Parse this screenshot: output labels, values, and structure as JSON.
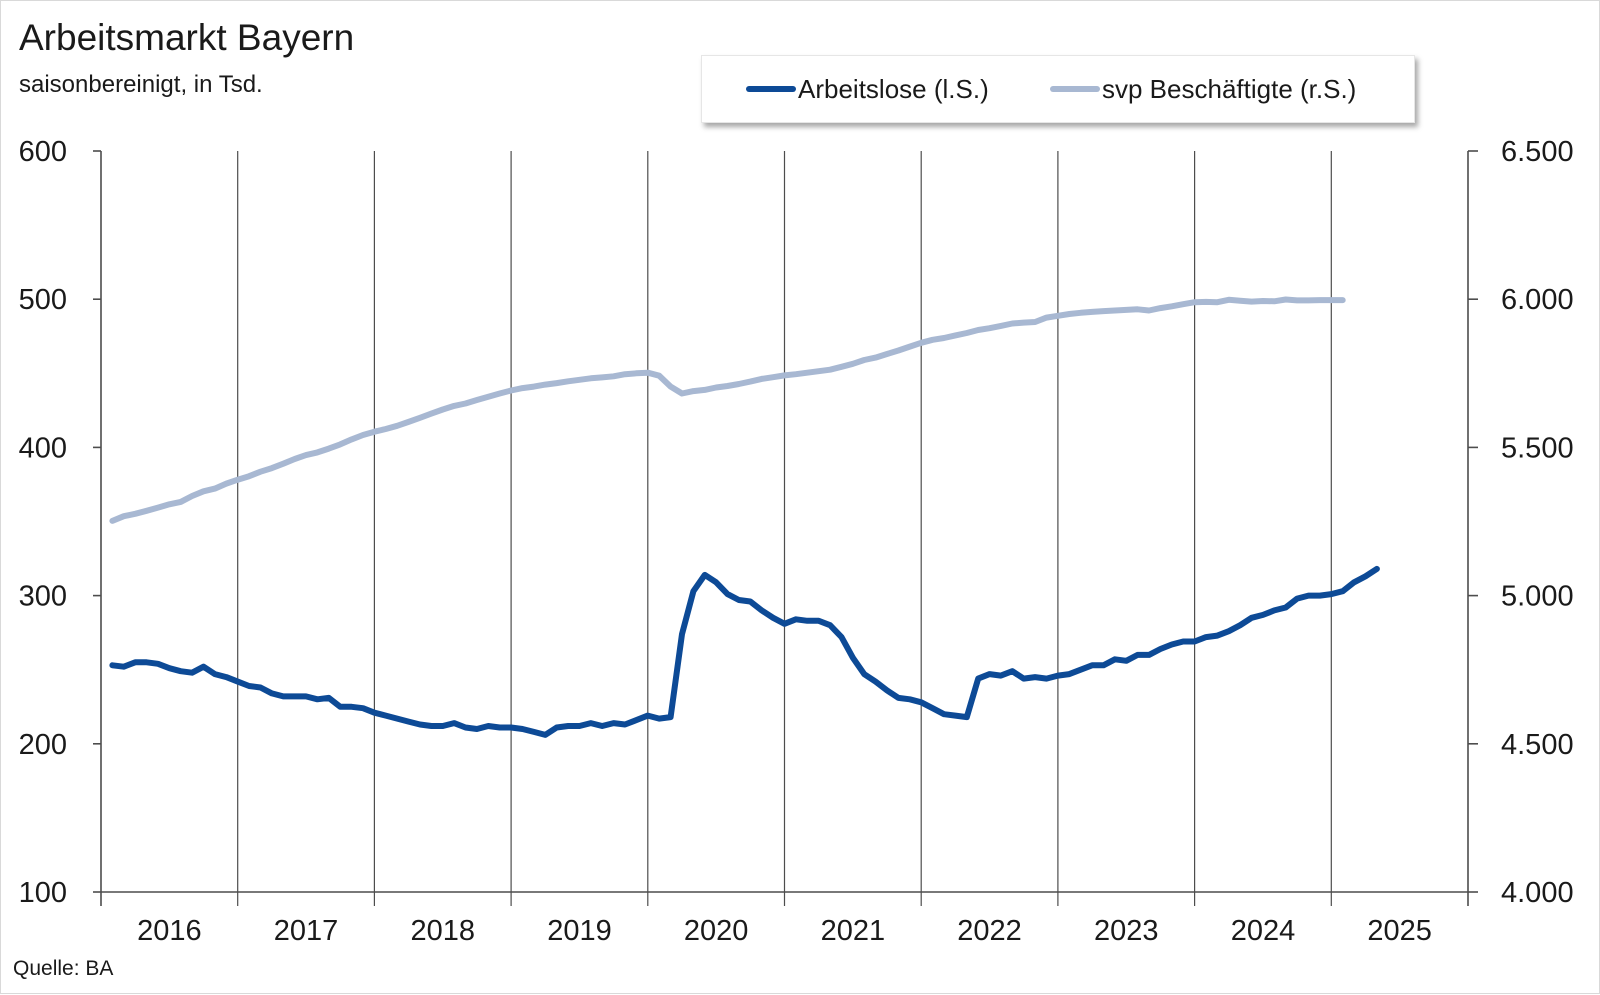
{
  "header": {
    "title": "Arbeitsmarkt Bayern",
    "subtitle": "saisonbereinigt, in Tsd."
  },
  "footer": {
    "source": "Quelle: BA"
  },
  "chart_data": {
    "type": "line",
    "xaxis": {
      "type": "date",
      "range": [
        "2015-12",
        "2025-12"
      ],
      "year_labels": [
        "2016",
        "2017",
        "2018",
        "2019",
        "2020",
        "2021",
        "2022",
        "2023",
        "2024",
        "2025"
      ]
    },
    "yaxis_left": {
      "range": [
        100,
        600
      ],
      "ticks": [
        100,
        200,
        300,
        400,
        500,
        600
      ],
      "tick_labels": [
        "100",
        "200",
        "300",
        "400",
        "500",
        "600"
      ]
    },
    "yaxis_right": {
      "range": [
        4000,
        6500
      ],
      "ticks": [
        4000,
        4500,
        5000,
        5500,
        6000,
        6500
      ],
      "tick_labels": [
        "4.000",
        "4.500",
        "5.000",
        "5.500",
        "6.000",
        "6.500"
      ]
    },
    "grid": {
      "vertical": true,
      "horizontal": false
    },
    "legend": {
      "position": "top"
    },
    "series": [
      {
        "name": "Arbeitslose (l.S.)",
        "axis": "left",
        "color": "#0d4a96",
        "x_start": "2016-01",
        "values": [
          253,
          252,
          255,
          255,
          254,
          251,
          249,
          248,
          252,
          247,
          245,
          242,
          239,
          238,
          234,
          232,
          232,
          232,
          230,
          231,
          225,
          225,
          224,
          221,
          219,
          217,
          215,
          213,
          212,
          212,
          214,
          211,
          210,
          212,
          211,
          211,
          210,
          208,
          206,
          211,
          212,
          212,
          214,
          212,
          214,
          213,
          216,
          219,
          217,
          218,
          274,
          303,
          314,
          309,
          301,
          297,
          296,
          290,
          285,
          281,
          284,
          283,
          283,
          280,
          272,
          258,
          247,
          242,
          236,
          231,
          230,
          228,
          224,
          220,
          219,
          218,
          244,
          247,
          246,
          249,
          244,
          245,
          244,
          246,
          247,
          250,
          253,
          253,
          257,
          256,
          260,
          260,
          264,
          267,
          269,
          269,
          272,
          273,
          276,
          280,
          285,
          287,
          290,
          292,
          298,
          300,
          300,
          301,
          303,
          309,
          313,
          318
        ],
        "highlight_range": [
          "2020-03",
          "2020-05"
        ]
      },
      {
        "name": "svp Beschäftigte (r.S.)",
        "axis": "right",
        "color": "#a8b8d2",
        "x_start": "2016-01",
        "values": [
          5252,
          5268,
          5276,
          5286,
          5297,
          5308,
          5316,
          5336,
          5352,
          5361,
          5378,
          5391,
          5403,
          5418,
          5430,
          5445,
          5461,
          5474,
          5483,
          5496,
          5510,
          5527,
          5542,
          5553,
          5562,
          5573,
          5586,
          5600,
          5614,
          5628,
          5640,
          5648,
          5660,
          5671,
          5682,
          5692,
          5700,
          5705,
          5712,
          5717,
          5723,
          5728,
          5733,
          5736,
          5740,
          5747,
          5750,
          5752,
          5742,
          5705,
          5682,
          5690,
          5694,
          5702,
          5707,
          5714,
          5722,
          5731,
          5737,
          5743,
          5747,
          5752,
          5757,
          5762,
          5772,
          5782,
          5795,
          5803,
          5815,
          5827,
          5840,
          5853,
          5863,
          5869,
          5878,
          5886,
          5896,
          5902,
          5910,
          5918,
          5921,
          5923,
          5938,
          5944,
          5950,
          5954,
          5957,
          5960,
          5962,
          5964,
          5966,
          5962,
          5970,
          5976,
          5983,
          5990,
          5991,
          5990,
          5998,
          5995,
          5992,
          5994,
          5993,
          5999,
          5996,
          5996,
          5997,
          5997,
          5997
        ]
      }
    ]
  }
}
